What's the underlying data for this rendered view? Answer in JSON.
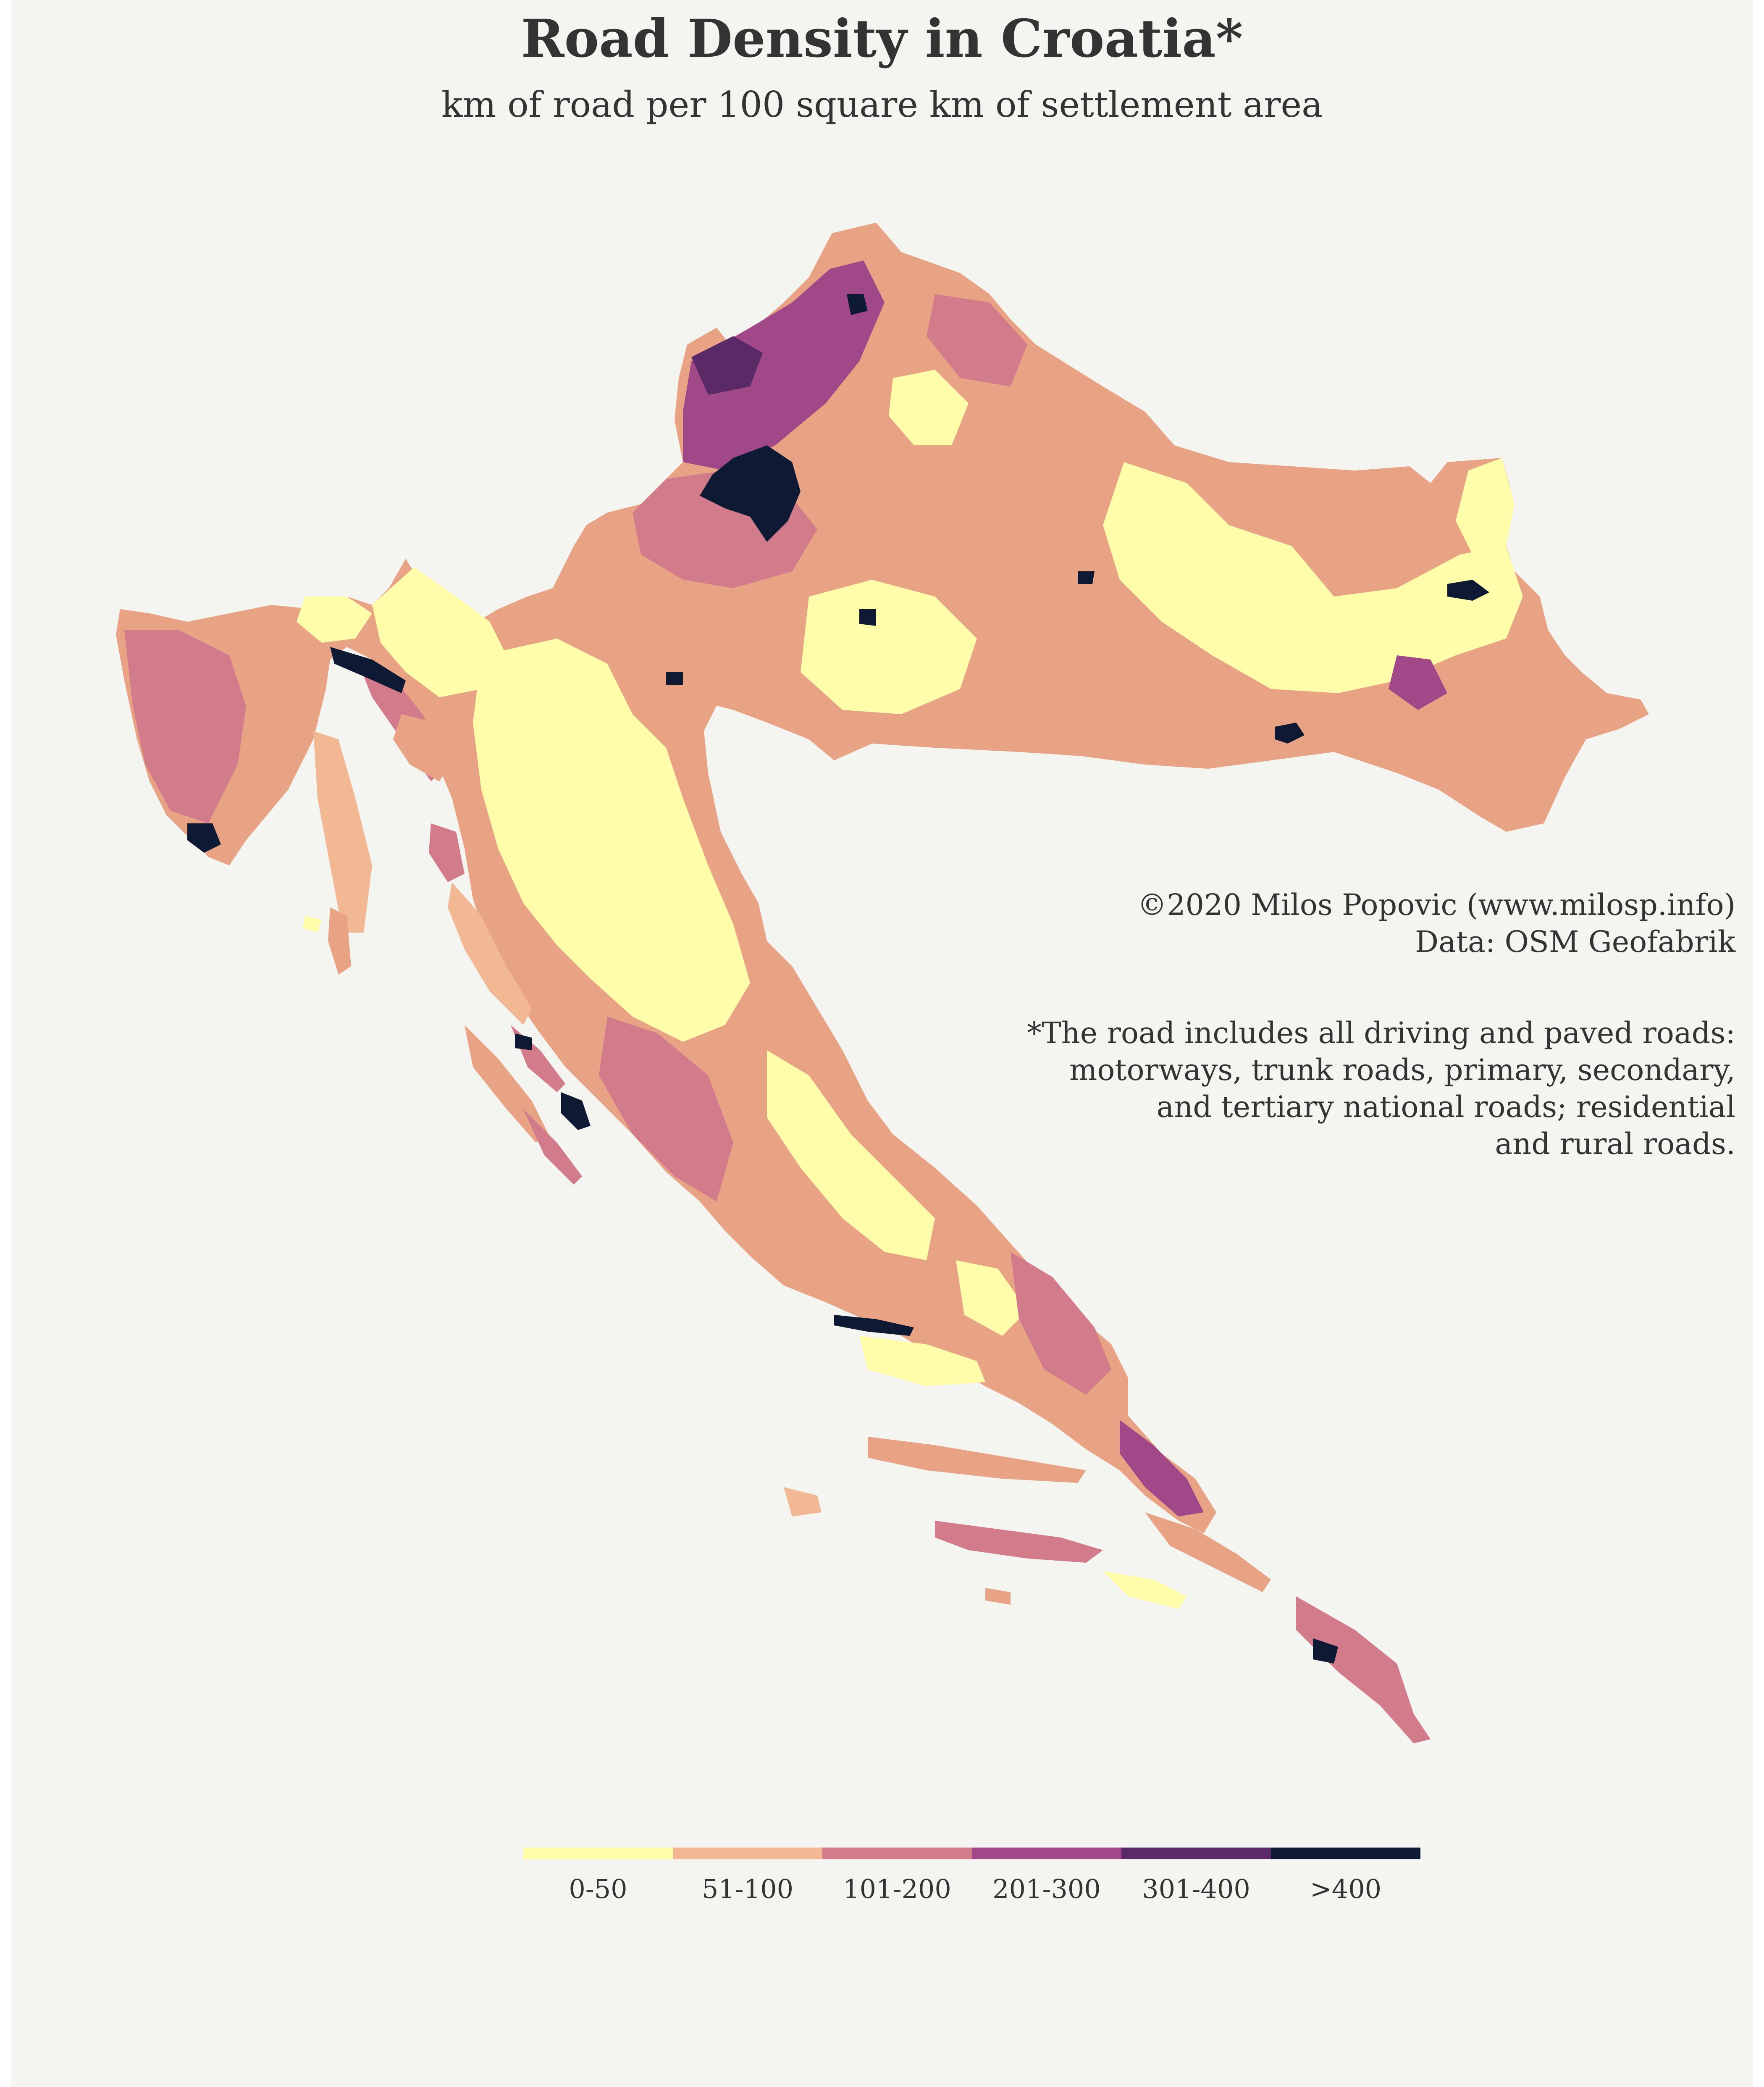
{
  "title": "Road Density in Croatia*",
  "subtitle": "km of road per 100 square km of settlement area",
  "credit": {
    "line1": "©2020 Milos Popovic (www.milosp.info)",
    "line2": "Data: OSM Geofabrik"
  },
  "note": {
    "line1": "*The road includes all driving and paved roads:",
    "line2": "motorways, trunk roads, primary, secondary,",
    "line3": "and tertiary national roads; residential",
    "line4": "and rural roads."
  },
  "legend": {
    "classes": [
      {
        "label": "0-50",
        "color": "#fffcaa"
      },
      {
        "label": "51-100",
        "color": "#f2b893"
      },
      {
        "label": "101-200",
        "color": "#d27b8b"
      },
      {
        "label": "201-300",
        "color": "#a14888"
      },
      {
        "label": "301-400",
        "color": "#5a2a66"
      },
      {
        "label": ">400",
        "color": "#0e1a33"
      }
    ]
  },
  "map": {
    "region": "Croatia",
    "high_density_cities": [
      "zagreb-marker",
      "osijek-marker",
      "rijeka-marker",
      "split-marker",
      "dubrovnik-marker",
      "zadar-marker",
      "slavonski-brod-marker",
      "pula-marker"
    ]
  }
}
